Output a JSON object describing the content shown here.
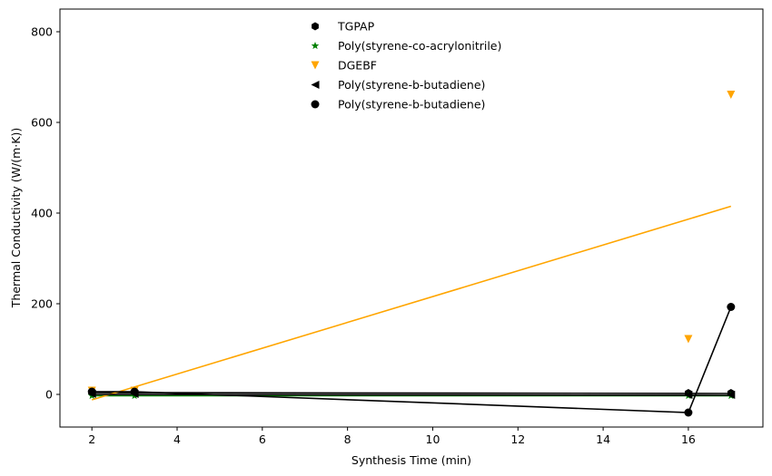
{
  "chart_data": {
    "type": "scatter",
    "title": "",
    "xlabel": "Synthesis Time (min)",
    "ylabel": "Thermal Conductivity (W/(m·K))",
    "xlim": [
      1.25,
      17.75
    ],
    "ylim": [
      -72,
      850
    ],
    "xticks": [
      2,
      4,
      6,
      8,
      10,
      12,
      14,
      16
    ],
    "yticks": [
      0,
      200,
      400,
      600,
      800
    ],
    "grid": false,
    "legend_position": "top-center",
    "series": [
      {
        "name": "TGPAP",
        "marker": "hexagon",
        "color": "#000000",
        "points": [
          [
            2,
            5
          ],
          [
            3,
            5
          ],
          [
            16,
            3
          ],
          [
            17,
            3
          ]
        ],
        "fit_line": [
          [
            2,
            4
          ],
          [
            17,
            2
          ]
        ]
      },
      {
        "name": "Poly(styrene-co-acrylonitrile)",
        "marker": "star",
        "color": "#008000",
        "points": [
          [
            2,
            -3
          ],
          [
            3,
            -3
          ],
          [
            16,
            -3
          ],
          [
            17,
            -3
          ]
        ],
        "fit_line": [
          [
            2,
            -3
          ],
          [
            17,
            -3
          ]
        ]
      },
      {
        "name": "DGEBF",
        "marker": "triangle-down",
        "color": "#ffa500",
        "points": [
          [
            2,
            8
          ],
          [
            3,
            8
          ],
          [
            16,
            122
          ],
          [
            17,
            661
          ]
        ],
        "fit_line": [
          [
            2,
            -12
          ],
          [
            17,
            415
          ]
        ]
      },
      {
        "name": "Poly(styrene-b-butadiene)",
        "marker": "triangle-left",
        "color": "#000000",
        "points": [
          [
            2,
            1
          ],
          [
            3,
            1
          ],
          [
            16,
            -1
          ],
          [
            17,
            -1
          ]
        ],
        "fit_line": [
          [
            2,
            0
          ],
          [
            17,
            -2
          ]
        ]
      },
      {
        "name": "Poly(styrene-b-butadiene)",
        "marker": "circle",
        "color": "#000000",
        "points": [
          [
            2,
            6
          ],
          [
            3,
            6
          ],
          [
            16,
            -40
          ],
          [
            17,
            193
          ]
        ],
        "line": [
          [
            2,
            6
          ],
          [
            3,
            6
          ],
          [
            16,
            -40
          ],
          [
            17,
            193
          ]
        ]
      }
    ]
  }
}
